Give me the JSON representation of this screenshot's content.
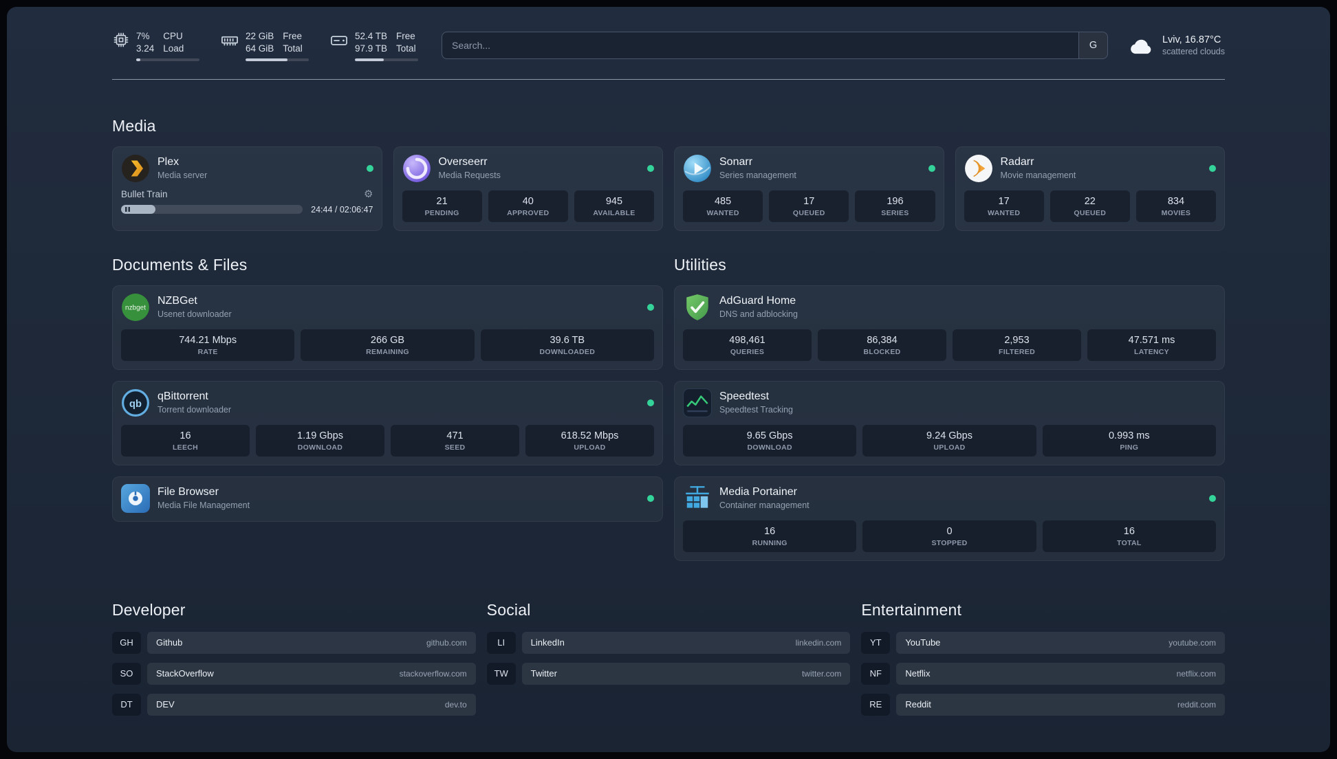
{
  "colors": {
    "status_online": "#34d399",
    "background": "#1d2736"
  },
  "topbar": {
    "resources": [
      {
        "name": "cpu",
        "icon": "cpu-icon",
        "values": [
          "7%",
          "3.24"
        ],
        "labels": [
          "CPU",
          "Load"
        ],
        "progress": 7
      },
      {
        "name": "memory",
        "icon": "ram-icon",
        "values": [
          "22 GiB",
          "64 GiB"
        ],
        "labels": [
          "Free",
          "Total"
        ],
        "progress": 66
      },
      {
        "name": "storage",
        "icon": "disk-icon",
        "values": [
          "52.4 TB",
          "97.9 TB"
        ],
        "labels": [
          "Free",
          "Total"
        ],
        "progress": 46
      }
    ],
    "search": {
      "placeholder": "Search...",
      "button": "G"
    },
    "weather": {
      "icon": "cloud-icon",
      "location": "Lviv, 16.87°C",
      "condition": "scattered clouds"
    }
  },
  "media": {
    "title": "Media",
    "cards": [
      {
        "icon": "plex-icon",
        "name": "Plex",
        "desc": "Media server",
        "status": true,
        "player": {
          "title": "Bullet Train",
          "time": "24:44 / 02:06:47",
          "progress": 19
        }
      },
      {
        "icon": "overseerr-icon",
        "name": "Overseerr",
        "desc": "Media Requests",
        "status": true,
        "stats": [
          {
            "value": "21",
            "label": "PENDING"
          },
          {
            "value": "40",
            "label": "APPROVED"
          },
          {
            "value": "945",
            "label": "AVAILABLE"
          }
        ]
      },
      {
        "icon": "sonarr-icon",
        "name": "Sonarr",
        "desc": "Series management",
        "status": true,
        "stats": [
          {
            "value": "485",
            "label": "WANTED"
          },
          {
            "value": "17",
            "label": "QUEUED"
          },
          {
            "value": "196",
            "label": "SERIES"
          }
        ]
      },
      {
        "icon": "radarr-icon",
        "name": "Radarr",
        "desc": "Movie management",
        "status": true,
        "stats": [
          {
            "value": "17",
            "label": "WANTED"
          },
          {
            "value": "22",
            "label": "QUEUED"
          },
          {
            "value": "834",
            "label": "MOVIES"
          }
        ]
      }
    ]
  },
  "columns": [
    {
      "title": "Documents & Files",
      "cards": [
        {
          "icon": "nzbget-icon",
          "name": "NZBGet",
          "desc": "Usenet downloader",
          "status": true,
          "stats": [
            {
              "value": "744.21 Mbps",
              "label": "RATE"
            },
            {
              "value": "266 GB",
              "label": "REMAINING"
            },
            {
              "value": "39.6 TB",
              "label": "DOWNLOADED"
            }
          ]
        },
        {
          "icon": "qbittorrent-icon",
          "name": "qBittorrent",
          "desc": "Torrent downloader",
          "status": true,
          "stats": [
            {
              "value": "16",
              "label": "LEECH"
            },
            {
              "value": "1.19 Gbps",
              "label": "DOWNLOAD"
            },
            {
              "value": "471",
              "label": "SEED"
            },
            {
              "value": "618.52 Mbps",
              "label": "UPLOAD"
            }
          ]
        },
        {
          "icon": "filebrowser-icon",
          "name": "File Browser",
          "desc": "Media File Management",
          "status": true
        }
      ]
    },
    {
      "title": "Utilities",
      "cards": [
        {
          "icon": "adguard-icon",
          "name": "AdGuard Home",
          "desc": "DNS and adblocking",
          "status": false,
          "stats": [
            {
              "value": "498,461",
              "label": "QUERIES"
            },
            {
              "value": "86,384",
              "label": "BLOCKED"
            },
            {
              "value": "2,953",
              "label": "FILTERED"
            },
            {
              "value": "47.571 ms",
              "label": "LATENCY"
            }
          ]
        },
        {
          "icon": "speedtest-icon",
          "name": "Speedtest",
          "desc": "Speedtest Tracking",
          "status": false,
          "stats": [
            {
              "value": "9.65 Gbps",
              "label": "DOWNLOAD"
            },
            {
              "value": "9.24 Gbps",
              "label": "UPLOAD"
            },
            {
              "value": "0.993 ms",
              "label": "PING"
            }
          ]
        },
        {
          "icon": "portainer-icon",
          "name": "Media Portainer",
          "desc": "Container management",
          "status": true,
          "stats": [
            {
              "value": "16",
              "label": "RUNNING"
            },
            {
              "value": "0",
              "label": "STOPPED"
            },
            {
              "value": "16",
              "label": "TOTAL"
            }
          ]
        }
      ]
    }
  ],
  "bookmarks": [
    {
      "title": "Developer",
      "items": [
        {
          "abbr": "GH",
          "name": "Github",
          "url": "github.com"
        },
        {
          "abbr": "SO",
          "name": "StackOverflow",
          "url": "stackoverflow.com"
        },
        {
          "abbr": "DT",
          "name": "DEV",
          "url": "dev.to"
        }
      ]
    },
    {
      "title": "Social",
      "items": [
        {
          "abbr": "LI",
          "name": "LinkedIn",
          "url": "linkedin.com"
        },
        {
          "abbr": "TW",
          "name": "Twitter",
          "url": "twitter.com"
        }
      ]
    },
    {
      "title": "Entertainment",
      "items": [
        {
          "abbr": "YT",
          "name": "YouTube",
          "url": "youtube.com"
        },
        {
          "abbr": "NF",
          "name": "Netflix",
          "url": "netflix.com"
        },
        {
          "abbr": "RE",
          "name": "Reddit",
          "url": "reddit.com"
        }
      ]
    }
  ]
}
